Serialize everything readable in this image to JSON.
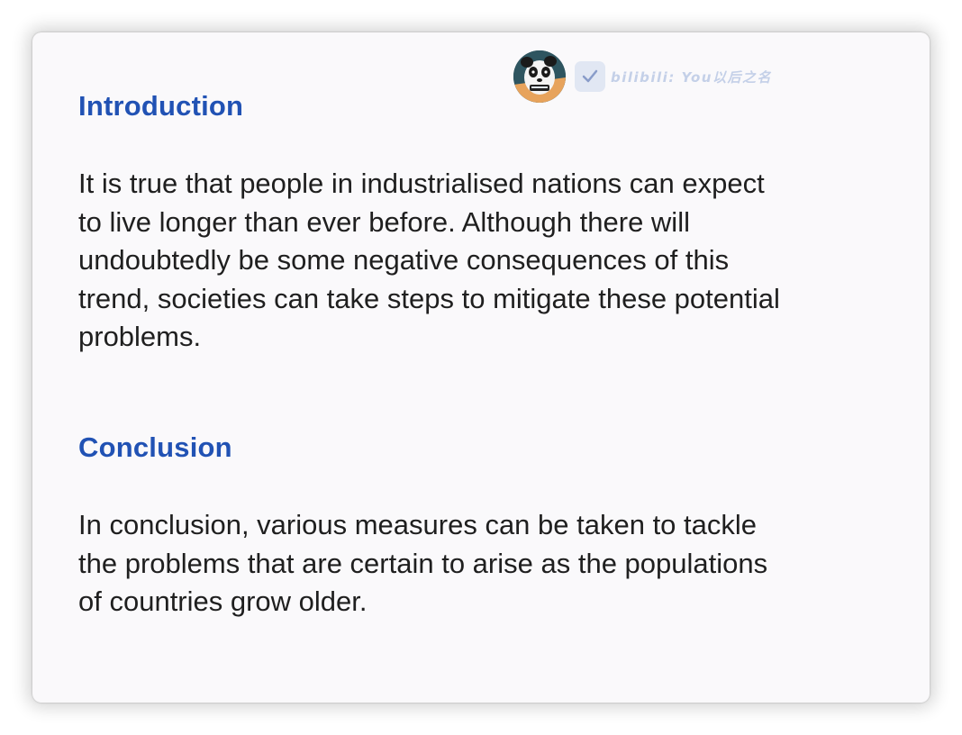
{
  "intro": {
    "heading": "Introduction",
    "lines": [
      "It is true that people in industrialised nations can expect",
      "to live longer than ever before. Although there will",
      "undoubtedly be some negative consequences of this",
      "trend, societies can take steps to mitigate these potential",
      "problems."
    ]
  },
  "conclusion": {
    "heading": "Conclusion",
    "lines": [
      "In conclusion, various measures can be taken to tackle",
      "the problems that are certain to arise as the populations",
      "of countries grow older."
    ]
  },
  "watermark": {
    "text": "bilibili: You以后之名",
    "avatar_icon": "panda-avatar-icon",
    "badge_icon": "verified-check-icon"
  },
  "colors": {
    "heading": "#2152b4",
    "body_text": "#1f1f1f",
    "background": "#faf9fb"
  }
}
